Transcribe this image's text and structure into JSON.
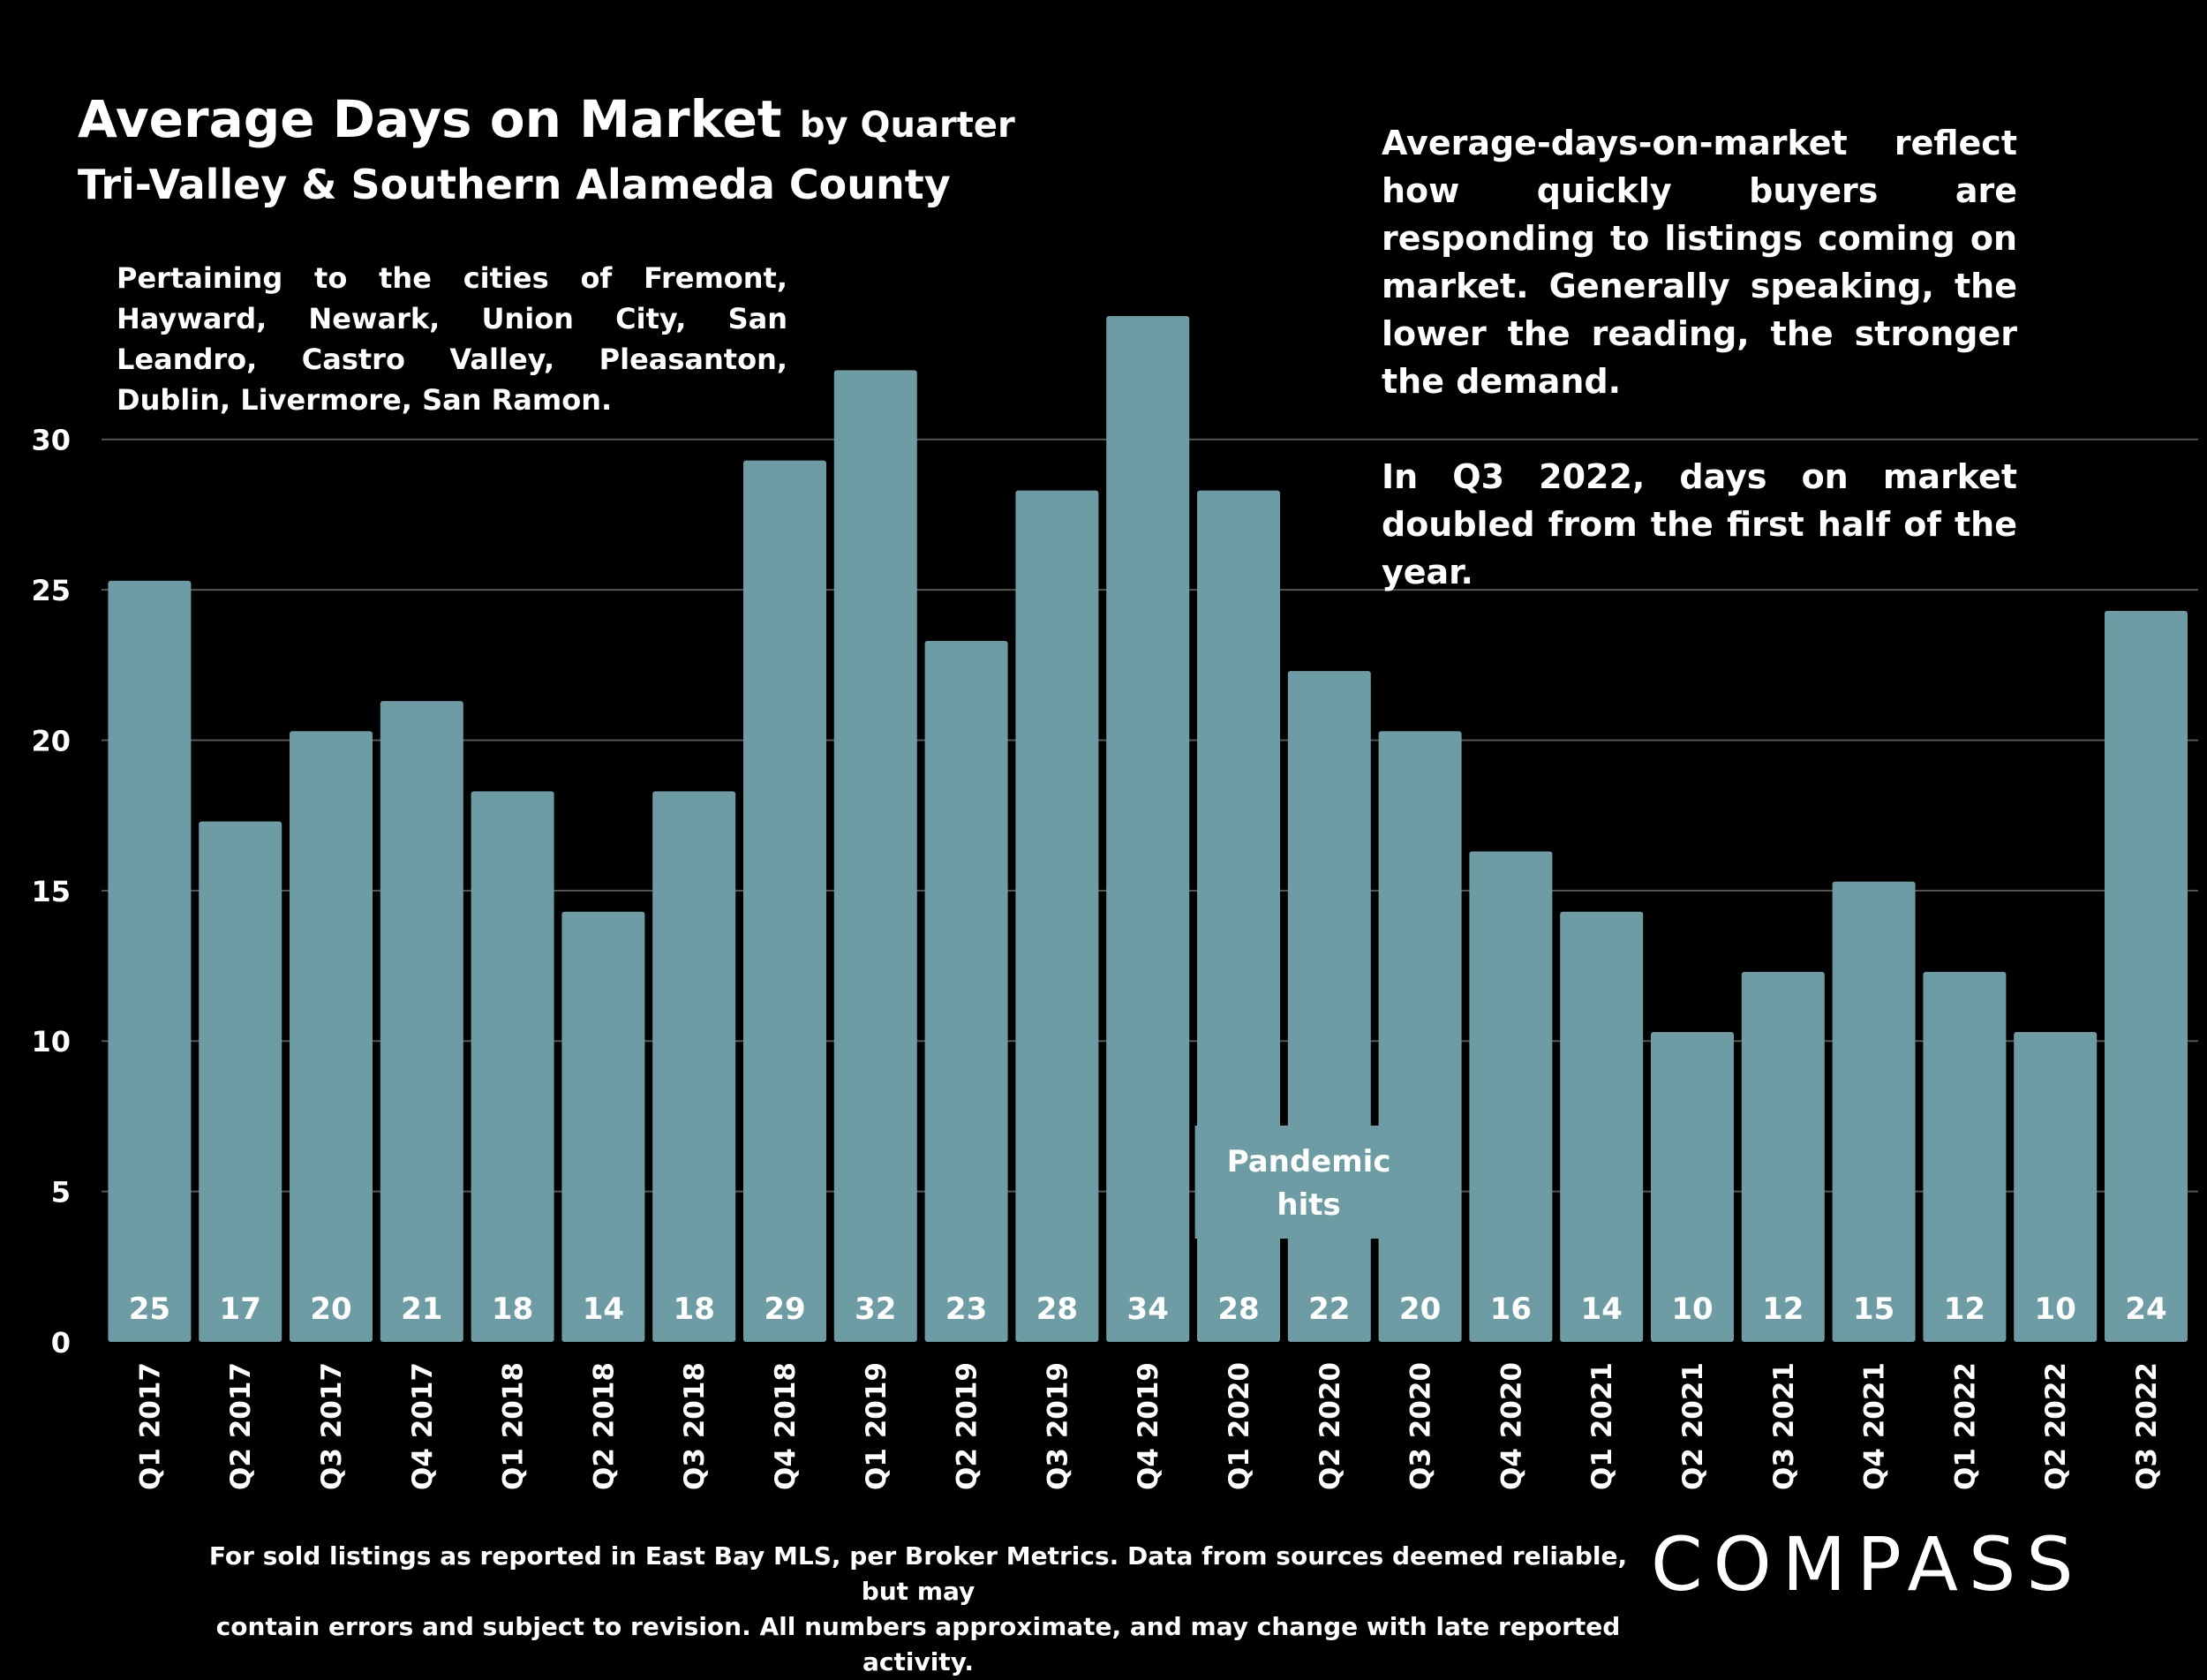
{
  "header": {
    "title": "Average Days on Market",
    "title_suffix": "by Quarter",
    "subtitle": "Tri-Valley & Southern Alameda County",
    "cities_note": "Pertaining to the cities of Fremont, Hayward, Newark, Union City, San Leandro, Castro Valley, Pleasanton, Dublin, Livermore, San Ramon."
  },
  "commentary": {
    "paragraph1": "Average-days-on-market reflect how quickly buyers are responding to listings coming on market. Generally speaking, the lower the reading, the stronger the demand.",
    "paragraph2": "In Q3 2022, days on market doubled from the first half of the year."
  },
  "annotation": {
    "text": "Pandemic hits",
    "quarter": "Q1 2020"
  },
  "footer": {
    "line1": "For sold listings as reported in East Bay MLS, per Broker Metrics. Data from sources deemed reliable, but may",
    "line2": "contain errors and subject to revision. All numbers approximate, and may change with late reported activity."
  },
  "logo": {
    "text": "COMPASS"
  },
  "colors": {
    "background": "#000000",
    "bar": "#6e9ca5",
    "text": "#ffffff",
    "gridline": "#555555"
  },
  "chart_data": {
    "type": "bar",
    "title": "Average Days on Market by Quarter",
    "categories": [
      "Q1 2017",
      "Q2 2017",
      "Q3 2017",
      "Q4 2017",
      "Q1 2018",
      "Q2 2018",
      "Q3 2018",
      "Q4 2018",
      "Q1 2019",
      "Q2 2019",
      "Q3 2019",
      "Q4 2019",
      "Q1 2020",
      "Q2 2020",
      "Q3 2020",
      "Q4 2020",
      "Q1 2021",
      "Q2 2021",
      "Q3 2021",
      "Q4 2021",
      "Q1 2022",
      "Q2 2022",
      "Q3 2022"
    ],
    "values": [
      25.3,
      17.3,
      20.3,
      21.3,
      18.3,
      14.3,
      18.3,
      29.3,
      32.3,
      23.3,
      28.3,
      34.1,
      28.3,
      22.3,
      20.3,
      16.3,
      14.3,
      10.3,
      12.3,
      15.3,
      12.3,
      10.3,
      24.3
    ],
    "labels": [
      "25",
      "17",
      "20",
      "21",
      "18",
      "14",
      "18",
      "29",
      "32",
      "23",
      "28",
      "34",
      "28",
      "22",
      "20",
      "16",
      "14",
      "10",
      "12",
      "15",
      "12",
      "10",
      "24"
    ],
    "yticks": [
      0,
      5,
      10,
      15,
      20,
      25,
      30
    ],
    "ylim": [
      0,
      34.1
    ],
    "xlabel": "",
    "ylabel": "",
    "grid": true,
    "legend": "none"
  }
}
